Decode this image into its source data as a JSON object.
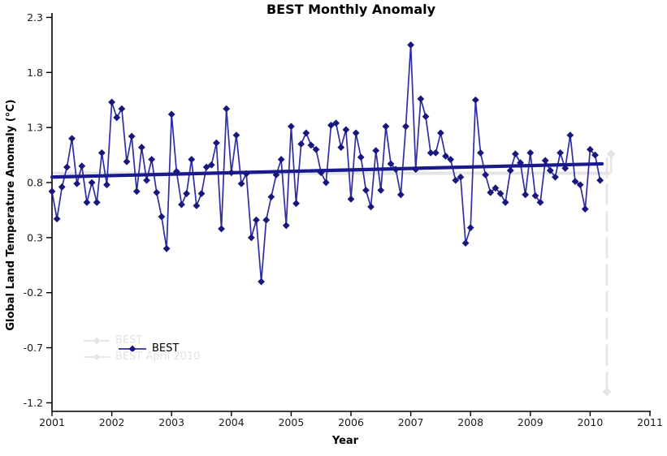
{
  "title": "BEST Monthly Anomaly",
  "axes": {
    "x_label": "Year",
    "y_label": "Global Land Temperature Anomaly (°C)",
    "x_ticks": [
      2001,
      2002,
      2003,
      2004,
      2005,
      2006,
      2007,
      2008,
      2009,
      2010,
      2011
    ],
    "y_ticks": [
      2.3,
      1.8,
      1.3,
      0.8,
      0.3,
      -0.2,
      -0.7,
      -1.2
    ],
    "x_range": [
      2001,
      2011
    ],
    "y_range": [
      -1.2,
      2.3
    ]
  },
  "legend": {
    "active_label": "BEST",
    "ghost_labels": [
      "BEST",
      "BEST April 2010"
    ],
    "position": "inside-lower-left"
  },
  "colors": {
    "series_line": "#2e2ea4",
    "marker": "#17177e",
    "trend": "#1a1a8f",
    "ghost": "#e5e5e5",
    "ghost_text": "#e3e3e3",
    "axis": "#000000",
    "tick_text": "#1a1a1a"
  },
  "chart_data": {
    "type": "line",
    "title": "BEST Monthly Anomaly",
    "xlabel": "Year",
    "ylabel": "Global Land Temperature Anomaly (°C)",
    "xlim": [
      2001,
      2011
    ],
    "ylim": [
      -1.2,
      2.3
    ],
    "grid": false,
    "legend_position": "inside-lower-left",
    "marker_shape": "diamond",
    "series": [
      {
        "name": "BEST",
        "start": "2001-01",
        "frequency": "monthly",
        "values": [
          0.72,
          0.47,
          0.76,
          0.94,
          1.2,
          0.79,
          0.95,
          0.62,
          0.8,
          0.62,
          1.07,
          0.78,
          1.53,
          1.39,
          1.47,
          0.99,
          1.22,
          0.72,
          1.12,
          0.82,
          1.01,
          0.71,
          0.49,
          0.2,
          1.42,
          0.9,
          0.6,
          0.7,
          1.01,
          0.59,
          0.7,
          0.94,
          0.96,
          1.16,
          0.38,
          1.47,
          0.89,
          1.23,
          0.79,
          0.88,
          0.3,
          0.46,
          -0.1,
          0.46,
          0.67,
          0.87,
          1.01,
          0.41,
          1.31,
          0.61,
          1.15,
          1.25,
          1.14,
          1.1,
          0.89,
          0.8,
          1.32,
          1.34,
          1.12,
          1.28,
          0.65,
          1.25,
          1.03,
          0.73,
          0.58,
          1.09,
          0.73,
          1.31,
          0.97,
          0.92,
          0.69,
          1.31,
          2.05,
          0.92,
          1.56,
          1.4,
          1.07,
          1.07,
          1.25,
          1.04,
          1.01,
          0.82,
          0.85,
          0.25,
          0.39,
          1.55,
          1.07,
          0.87,
          0.71,
          0.75,
          0.7,
          0.62,
          0.91,
          1.06,
          0.98,
          0.69,
          1.07,
          0.68,
          0.62,
          1.0,
          0.91,
          0.85,
          1.07,
          0.93,
          1.23,
          0.81,
          0.78,
          0.56,
          1.1,
          1.05,
          0.82
        ]
      }
    ],
    "trend": {
      "x_start": 2001.0,
      "start_value": 0.85,
      "x_end": 2010.2,
      "end_value": 0.97
    },
    "ghost": {
      "description": "faded remnant of previous chart state (BEST April 2010 series)",
      "trend_value": 0.885,
      "trend_x_start": 2001.0,
      "trend_x_end": 2010.33,
      "last_point": {
        "x": 2010.35,
        "value": 1.06
      },
      "dropline_x": 2010.28,
      "dropline_bottom_value": -1.1,
      "legend_labels": [
        "BEST",
        "BEST April 2010"
      ]
    }
  }
}
